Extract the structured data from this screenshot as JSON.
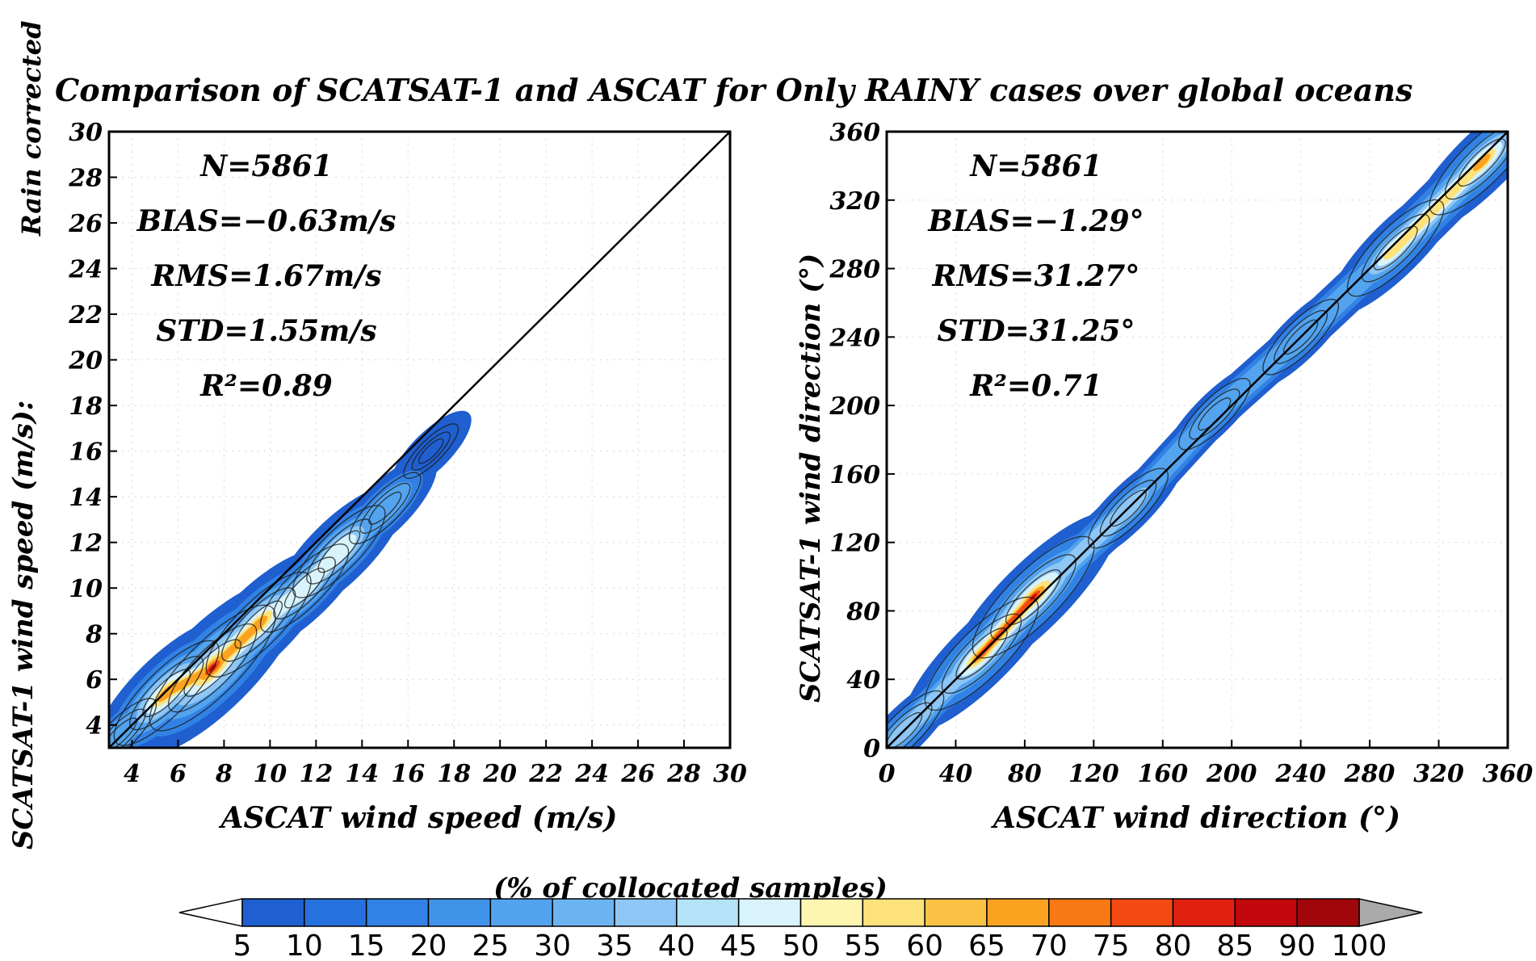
{
  "figure": {
    "title": "Comparison of SCATSAT-1 and ASCAT for Only RAINY cases over global oceans",
    "side_label": "Rain corrected"
  },
  "chart_data": [
    {
      "type": "heatmap",
      "panel": "wind-speed",
      "xlabel": "ASCAT wind speed (m/s)",
      "ylabel": "SCATSAT-1 wind speed (m/s):",
      "xlim": [
        3,
        30
      ],
      "ylim": [
        3,
        30
      ],
      "xticks": [
        4,
        6,
        8,
        10,
        12,
        14,
        16,
        18,
        20,
        22,
        24,
        26,
        28,
        30
      ],
      "yticks": [
        4,
        6,
        8,
        10,
        12,
        14,
        16,
        18,
        20,
        22,
        24,
        26,
        28,
        30
      ],
      "grid": true,
      "reference_line": "1:1",
      "stats": [
        "N=5861",
        "BIAS=−0.63m/s",
        "RMS=1.67m/s",
        "STD=1.55m/s",
        "R²=0.89"
      ],
      "density_peak": {
        "x": 7.5,
        "y": 6.5,
        "percent": 90
      },
      "density_ridge": [
        {
          "x": 3.5,
          "y": 3.6,
          "percent": 25
        },
        {
          "x": 5.5,
          "y": 5.4,
          "percent": 65
        },
        {
          "x": 7.5,
          "y": 6.5,
          "percent": 90
        },
        {
          "x": 9.5,
          "y": 8.4,
          "percent": 65
        },
        {
          "x": 11.5,
          "y": 10.0,
          "percent": 45
        },
        {
          "x": 13.0,
          "y": 11.6,
          "percent": 50
        },
        {
          "x": 15.0,
          "y": 13.5,
          "percent": 25
        },
        {
          "x": 17.0,
          "y": 16.0,
          "percent": 5
        }
      ]
    },
    {
      "type": "heatmap",
      "panel": "wind-direction",
      "xlabel": "ASCAT wind direction (°)",
      "ylabel": "SCATSAT-1 wind direction (°)",
      "xlim": [
        0,
        360
      ],
      "ylim": [
        0,
        360
      ],
      "xticks": [
        0,
        40,
        80,
        120,
        160,
        200,
        240,
        280,
        320,
        360
      ],
      "yticks": [
        0,
        40,
        80,
        120,
        160,
        200,
        240,
        280,
        320,
        360
      ],
      "grid": true,
      "reference_line": "1:1",
      "stats": [
        "N=5861",
        "BIAS=−1.29°",
        "RMS=31.27°",
        "STD=31.25°",
        "R²=0.71"
      ],
      "density_peak": {
        "x": 85,
        "y": 88,
        "percent": 85
      },
      "density_ridge": [
        {
          "x": 10,
          "y": 10,
          "percent": 35
        },
        {
          "x": 55,
          "y": 55,
          "percent": 75
        },
        {
          "x": 85,
          "y": 88,
          "percent": 85
        },
        {
          "x": 140,
          "y": 140,
          "percent": 35
        },
        {
          "x": 190,
          "y": 195,
          "percent": 25
        },
        {
          "x": 240,
          "y": 240,
          "percent": 30
        },
        {
          "x": 295,
          "y": 292,
          "percent": 55
        },
        {
          "x": 345,
          "y": 342,
          "percent": 65
        }
      ]
    }
  ],
  "colorbar": {
    "title": "(% of collocated samples)",
    "levels": [
      5,
      10,
      15,
      20,
      25,
      30,
      35,
      40,
      45,
      50,
      55,
      60,
      65,
      70,
      75,
      80,
      85,
      90,
      100
    ],
    "labels": [
      "5",
      "10",
      "15",
      "20",
      "25",
      "30",
      "35",
      "40",
      "45",
      "50",
      "55",
      "60",
      "65",
      "70",
      "75",
      "80",
      "85",
      "90",
      "100"
    ],
    "colors": [
      "#1f5fcf",
      "#2671de",
      "#3282e5",
      "#4193ea",
      "#53a3ee",
      "#6cb4f1",
      "#8ec6f5",
      "#b4e2f6",
      "#d8f3fb",
      "#fef6b0",
      "#fde27a",
      "#fcc246",
      "#fba321",
      "#f97a14",
      "#f44a11",
      "#e0200f",
      "#c2080c",
      "#a0060a"
    ],
    "under_color": "#ffffff",
    "over_color": "#aaaaaa"
  }
}
